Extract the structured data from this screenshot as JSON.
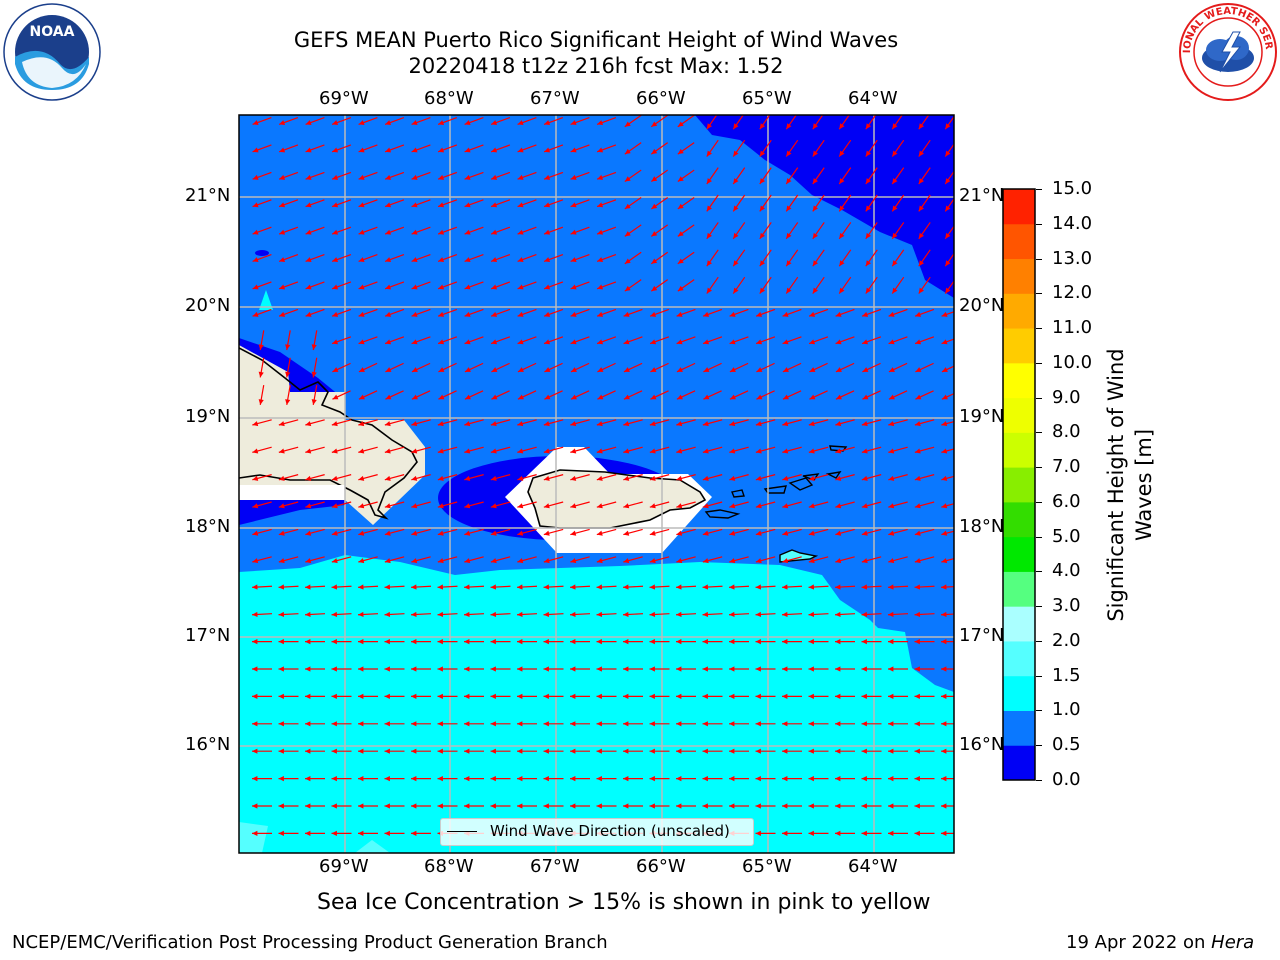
{
  "title_line1": "GEFS MEAN Puerto Rico Significant Height of Wind Waves",
  "title_line2": "20220418 t12z 216h fcst   Max: 1.52",
  "logos": {
    "noaa_text": "NOAA",
    "noaa_ring_text": "NATIONAL OCEANIC AND ATMOSPHERIC ADMINISTRATION · U.S. DEPARTMENT OF COMMERCE",
    "nws_ring_text": "NATIONAL WEATHER SERVICE"
  },
  "map": {
    "lon_labels": [
      "69°W",
      "68°W",
      "67°W",
      "66°W",
      "65°W",
      "64°W"
    ],
    "lat_labels": [
      "21°N",
      "20°N",
      "19°N",
      "18°N",
      "17°N",
      "16°N"
    ],
    "legend_label": "Wind Wave Direction (unscaled)",
    "arrow_color": "#ff0000",
    "land_color": "#eeecdc",
    "max_value": 1.52
  },
  "colorbar": {
    "label": "Significant Height of Wind Waves [m]",
    "label_line1": "Significant Height of Wind",
    "label_line2": "Waves [m]",
    "ticks": [
      "0.0",
      "0.5",
      "1.0",
      "1.5",
      "2.0",
      "3.0",
      "4.0",
      "5.0",
      "6.0",
      "7.0",
      "8.0",
      "9.0",
      "10.0",
      "11.0",
      "12.0",
      "13.0",
      "14.0",
      "15.0"
    ],
    "colors": [
      "#0000f5",
      "#0a78ff",
      "#00ffff",
      "#55ffff",
      "#aaffff",
      "#55ff80",
      "#00e800",
      "#33dd00",
      "#88ee00",
      "#ccff00",
      "#eeff00",
      "#ffff00",
      "#ffcc00",
      "#ffaa00",
      "#ff8000",
      "#ff5500",
      "#ff2200"
    ]
  },
  "note": "Sea Ice Concentration > 15% is shown in pink to yellow",
  "footer_left": "NCEP/EMC/Verification Post Processing Product Generation Branch",
  "footer_right_prefix": "19 Apr 2022 on ",
  "footer_right_host": "Hera"
}
